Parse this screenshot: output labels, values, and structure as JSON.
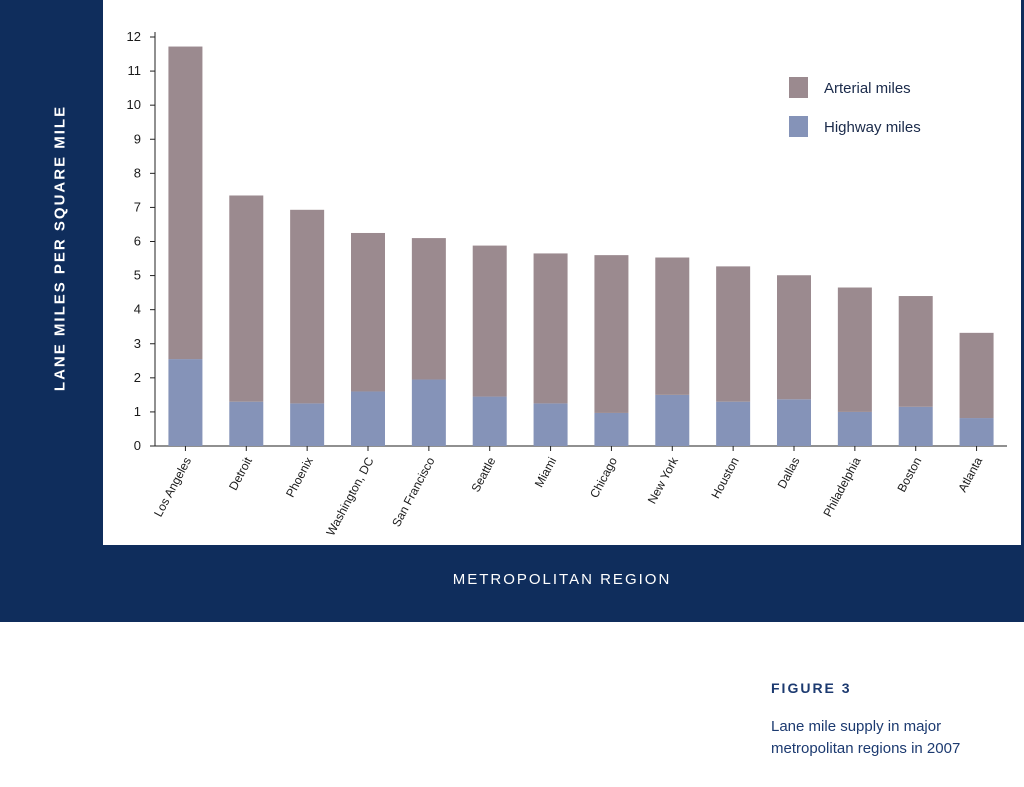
{
  "chart_data": {
    "type": "bar",
    "stacked": true,
    "title": "",
    "xlabel": "METROPOLITAN REGION",
    "ylabel": "LANE MILES PER SQUARE MILE",
    "ylim": [
      0,
      12
    ],
    "yticks": [
      0,
      1,
      2,
      3,
      4,
      5,
      6,
      7,
      8,
      9,
      10,
      11,
      12
    ],
    "grid": false,
    "legend_position": "top-right",
    "categories": [
      "Los Angeles",
      "Detroit",
      "Phoenix",
      "Washington, DC",
      "San Francisco",
      "Seattle",
      "Miami",
      "Chicago",
      "New York",
      "Houston",
      "Dallas",
      "Philadelphia",
      "Boston",
      "Atlanta"
    ],
    "series": [
      {
        "name": "Highway miles",
        "color": "#8593b8",
        "values": [
          2.55,
          1.3,
          1.25,
          1.6,
          1.95,
          1.45,
          1.25,
          0.97,
          1.5,
          1.3,
          1.37,
          1.0,
          1.15,
          0.82
        ]
      },
      {
        "name": "Arterial miles",
        "color": "#9b8a8f",
        "values": [
          9.17,
          6.05,
          5.68,
          4.65,
          4.15,
          4.43,
          4.4,
          4.63,
          4.03,
          3.97,
          3.64,
          3.65,
          3.25,
          2.5
        ]
      }
    ],
    "legend_order": [
      "Arterial miles",
      "Highway miles"
    ]
  },
  "figure": {
    "number": "FIGURE 3",
    "caption_line1": "Lane mile supply in major",
    "caption_line2": "metropolitan regions in 2007"
  }
}
